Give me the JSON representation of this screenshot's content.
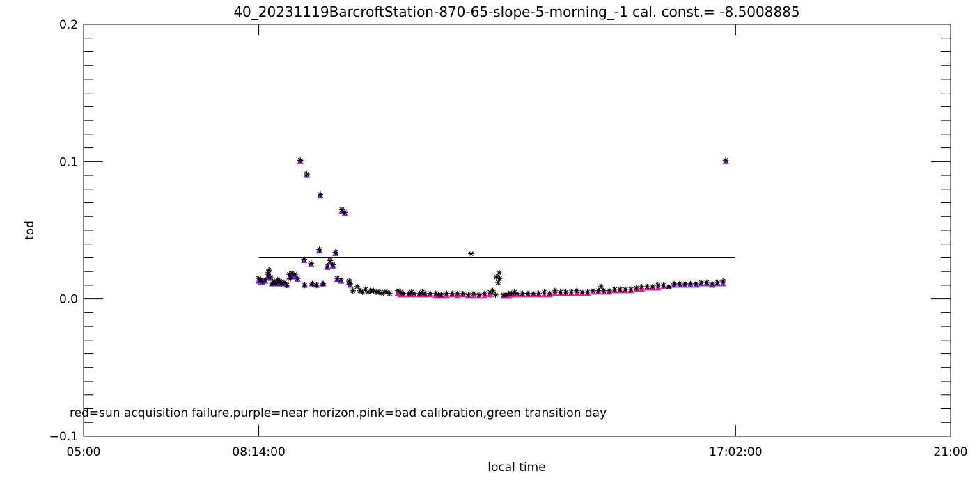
{
  "chart_data": {
    "type": "scatter",
    "title": "40_20231119BarcroftStation-870-65-slope-5-morning_-1 cal. const.= -8.5008885",
    "xlabel": "local time",
    "ylabel": "tod",
    "annotation": "red=sun acquisition failure,purple=near horizon,pink=bad calibration,green transition day",
    "x_unit": "hours",
    "xlim": [
      5.0,
      21.0
    ],
    "ylim": [
      -0.1,
      0.2
    ],
    "x_ticks": [
      {
        "value": 5.0,
        "label": "05:00"
      },
      {
        "value": 8.2333,
        "label": "08:14:00"
      },
      {
        "value": 17.0333,
        "label": "17:02:00"
      },
      {
        "value": 21.0,
        "label": "21:00"
      }
    ],
    "y_ticks": [
      {
        "value": -0.1,
        "label": "−0.1"
      },
      {
        "value": 0.0,
        "label": "0.0"
      },
      {
        "value": 0.1,
        "label": "0.1"
      },
      {
        "value": 0.2,
        "label": "0.2"
      }
    ],
    "threshold_line": {
      "x": [
        8.2333,
        17.0333
      ],
      "y": 0.03
    },
    "colors": {
      "all": "#000000",
      "purple": "#8a2be2",
      "pink": "#e0209a"
    },
    "series": [
      {
        "key": "all",
        "marker": "asterisk",
        "points": [
          [
            8.23,
            0.015
          ],
          [
            8.27,
            0.014
          ],
          [
            8.3,
            0.013
          ],
          [
            8.35,
            0.014
          ],
          [
            8.4,
            0.018
          ],
          [
            8.42,
            0.021
          ],
          [
            8.45,
            0.016
          ],
          [
            8.48,
            0.011
          ],
          [
            8.52,
            0.013
          ],
          [
            8.55,
            0.011
          ],
          [
            8.58,
            0.014
          ],
          [
            8.62,
            0.013
          ],
          [
            8.65,
            0.011
          ],
          [
            8.7,
            0.012
          ],
          [
            8.75,
            0.01
          ],
          [
            8.8,
            0.018
          ],
          [
            8.82,
            0.015
          ],
          [
            8.85,
            0.019
          ],
          [
            8.9,
            0.018
          ],
          [
            8.95,
            0.015
          ],
          [
            9.0,
            0.101
          ],
          [
            9.07,
            0.029
          ],
          [
            9.08,
            0.01
          ],
          [
            9.12,
            0.091
          ],
          [
            9.2,
            0.026
          ],
          [
            9.22,
            0.011
          ],
          [
            9.3,
            0.01
          ],
          [
            9.35,
            0.036
          ],
          [
            9.37,
            0.076
          ],
          [
            9.42,
            0.011
          ],
          [
            9.5,
            0.024
          ],
          [
            9.55,
            0.028
          ],
          [
            9.6,
            0.025
          ],
          [
            9.65,
            0.034
          ],
          [
            9.68,
            0.015
          ],
          [
            9.75,
            0.014
          ],
          [
            9.77,
            0.065
          ],
          [
            9.82,
            0.063
          ],
          [
            9.9,
            0.013
          ],
          [
            9.92,
            0.011
          ],
          [
            9.97,
            0.006
          ],
          [
            10.05,
            0.009
          ],
          [
            10.1,
            0.006
          ],
          [
            10.15,
            0.005
          ],
          [
            10.2,
            0.007
          ],
          [
            10.25,
            0.005
          ],
          [
            10.3,
            0.006
          ],
          [
            10.35,
            0.006
          ],
          [
            10.4,
            0.005
          ],
          [
            10.45,
            0.005
          ],
          [
            10.5,
            0.004
          ],
          [
            10.55,
            0.005
          ],
          [
            10.6,
            0.005
          ],
          [
            10.65,
            0.004
          ],
          [
            10.8,
            0.006
          ],
          [
            10.85,
            0.005
          ],
          [
            10.9,
            0.004
          ],
          [
            11.0,
            0.004
          ],
          [
            11.05,
            0.005
          ],
          [
            11.1,
            0.004
          ],
          [
            11.2,
            0.004
          ],
          [
            11.25,
            0.005
          ],
          [
            11.3,
            0.004
          ],
          [
            11.4,
            0.004
          ],
          [
            11.5,
            0.004
          ],
          [
            11.55,
            0.003
          ],
          [
            11.6,
            0.003
          ],
          [
            11.7,
            0.004
          ],
          [
            11.8,
            0.004
          ],
          [
            11.9,
            0.004
          ],
          [
            12.0,
            0.004
          ],
          [
            12.1,
            0.003
          ],
          [
            12.15,
            0.033
          ],
          [
            12.2,
            0.004
          ],
          [
            12.3,
            0.003
          ],
          [
            12.4,
            0.004
          ],
          [
            12.5,
            0.005
          ],
          [
            12.55,
            0.006
          ],
          [
            12.6,
            0.003
          ],
          [
            12.62,
            0.016
          ],
          [
            12.65,
            0.012
          ],
          [
            12.67,
            0.019
          ],
          [
            12.68,
            0.015
          ],
          [
            12.75,
            0.003
          ],
          [
            12.8,
            0.003
          ],
          [
            12.85,
            0.004
          ],
          [
            12.9,
            0.004
          ],
          [
            12.95,
            0.005
          ],
          [
            13.0,
            0.004
          ],
          [
            13.1,
            0.004
          ],
          [
            13.2,
            0.004
          ],
          [
            13.3,
            0.004
          ],
          [
            13.4,
            0.004
          ],
          [
            13.5,
            0.005
          ],
          [
            13.6,
            0.004
          ],
          [
            13.7,
            0.006
          ],
          [
            13.8,
            0.005
          ],
          [
            13.9,
            0.005
          ],
          [
            14.0,
            0.005
          ],
          [
            14.1,
            0.006
          ],
          [
            14.2,
            0.005
          ],
          [
            14.3,
            0.005
          ],
          [
            14.4,
            0.006
          ],
          [
            14.5,
            0.006
          ],
          [
            14.55,
            0.009
          ],
          [
            14.6,
            0.006
          ],
          [
            14.7,
            0.006
          ],
          [
            14.8,
            0.007
          ],
          [
            14.9,
            0.007
          ],
          [
            15.0,
            0.007
          ],
          [
            15.1,
            0.007
          ],
          [
            15.2,
            0.008
          ],
          [
            15.3,
            0.009
          ],
          [
            15.4,
            0.009
          ],
          [
            15.5,
            0.009
          ],
          [
            15.6,
            0.01
          ],
          [
            15.7,
            0.01
          ],
          [
            15.8,
            0.009
          ],
          [
            15.9,
            0.011
          ],
          [
            16.0,
            0.011
          ],
          [
            16.1,
            0.011
          ],
          [
            16.2,
            0.011
          ],
          [
            16.3,
            0.011
          ],
          [
            16.4,
            0.012
          ],
          [
            16.5,
            0.012
          ],
          [
            16.6,
            0.011
          ],
          [
            16.7,
            0.012
          ],
          [
            16.8,
            0.013
          ],
          [
            16.85,
            0.101
          ]
        ]
      },
      {
        "key": "purple",
        "marker": "triangle",
        "points": [
          [
            8.23,
            0.013
          ],
          [
            8.27,
            0.012
          ],
          [
            8.3,
            0.012
          ],
          [
            8.35,
            0.013
          ],
          [
            8.4,
            0.016
          ],
          [
            8.42,
            0.018
          ],
          [
            8.45,
            0.015
          ],
          [
            8.48,
            0.011
          ],
          [
            8.52,
            0.012
          ],
          [
            8.55,
            0.011
          ],
          [
            8.58,
            0.013
          ],
          [
            8.62,
            0.012
          ],
          [
            8.65,
            0.011
          ],
          [
            8.7,
            0.011
          ],
          [
            8.75,
            0.01
          ],
          [
            8.8,
            0.016
          ],
          [
            8.85,
            0.017
          ],
          [
            8.9,
            0.016
          ],
          [
            8.95,
            0.014
          ],
          [
            9.0,
            0.1
          ],
          [
            9.07,
            0.028
          ],
          [
            9.08,
            0.01
          ],
          [
            9.12,
            0.09
          ],
          [
            9.2,
            0.025
          ],
          [
            9.22,
            0.011
          ],
          [
            9.3,
            0.01
          ],
          [
            9.35,
            0.035
          ],
          [
            9.37,
            0.075
          ],
          [
            9.42,
            0.011
          ],
          [
            9.5,
            0.023
          ],
          [
            9.55,
            0.027
          ],
          [
            9.6,
            0.024
          ],
          [
            9.65,
            0.033
          ],
          [
            9.68,
            0.014
          ],
          [
            9.75,
            0.013
          ],
          [
            9.77,
            0.064
          ],
          [
            9.82,
            0.062
          ],
          [
            9.9,
            0.012
          ],
          [
            9.92,
            0.01
          ],
          [
            15.8,
            0.009
          ],
          [
            15.9,
            0.01
          ],
          [
            16.0,
            0.01
          ],
          [
            16.1,
            0.01
          ],
          [
            16.2,
            0.01
          ],
          [
            16.3,
            0.01
          ],
          [
            16.4,
            0.011
          ],
          [
            16.5,
            0.011
          ],
          [
            16.6,
            0.01
          ],
          [
            16.7,
            0.011
          ],
          [
            16.8,
            0.011
          ],
          [
            16.85,
            0.1
          ]
        ]
      },
      {
        "key": "pink",
        "marker": "triangle",
        "points": [
          [
            10.8,
            0.004
          ],
          [
            10.85,
            0.003
          ],
          [
            10.9,
            0.003
          ],
          [
            11.0,
            0.003
          ],
          [
            11.05,
            0.003
          ],
          [
            11.1,
            0.003
          ],
          [
            11.2,
            0.003
          ],
          [
            11.25,
            0.003
          ],
          [
            11.3,
            0.003
          ],
          [
            11.4,
            0.003
          ],
          [
            11.5,
            0.002
          ],
          [
            11.55,
            0.002
          ],
          [
            11.6,
            0.002
          ],
          [
            11.7,
            0.002
          ],
          [
            11.8,
            0.003
          ],
          [
            11.9,
            0.002
          ],
          [
            12.0,
            0.003
          ],
          [
            12.1,
            0.002
          ],
          [
            12.2,
            0.002
          ],
          [
            12.3,
            0.002
          ],
          [
            12.4,
            0.002
          ],
          [
            12.5,
            0.003
          ],
          [
            12.75,
            0.002
          ],
          [
            12.8,
            0.002
          ],
          [
            12.85,
            0.002
          ],
          [
            12.9,
            0.003
          ],
          [
            12.95,
            0.003
          ],
          [
            13.0,
            0.003
          ],
          [
            13.1,
            0.003
          ],
          [
            13.2,
            0.003
          ],
          [
            13.3,
            0.003
          ],
          [
            13.4,
            0.003
          ],
          [
            13.5,
            0.003
          ],
          [
            13.6,
            0.003
          ],
          [
            13.7,
            0.004
          ],
          [
            13.8,
            0.004
          ],
          [
            13.9,
            0.004
          ],
          [
            14.0,
            0.004
          ],
          [
            14.1,
            0.004
          ],
          [
            14.2,
            0.004
          ],
          [
            14.3,
            0.004
          ],
          [
            14.4,
            0.005
          ],
          [
            14.5,
            0.005
          ],
          [
            14.6,
            0.005
          ],
          [
            14.7,
            0.005
          ],
          [
            14.8,
            0.006
          ],
          [
            14.9,
            0.006
          ],
          [
            15.0,
            0.006
          ],
          [
            15.1,
            0.006
          ],
          [
            15.2,
            0.007
          ],
          [
            15.3,
            0.007
          ],
          [
            15.4,
            0.008
          ],
          [
            15.5,
            0.008
          ],
          [
            15.6,
            0.008
          ],
          [
            15.7,
            0.009
          ]
        ]
      }
    ]
  }
}
